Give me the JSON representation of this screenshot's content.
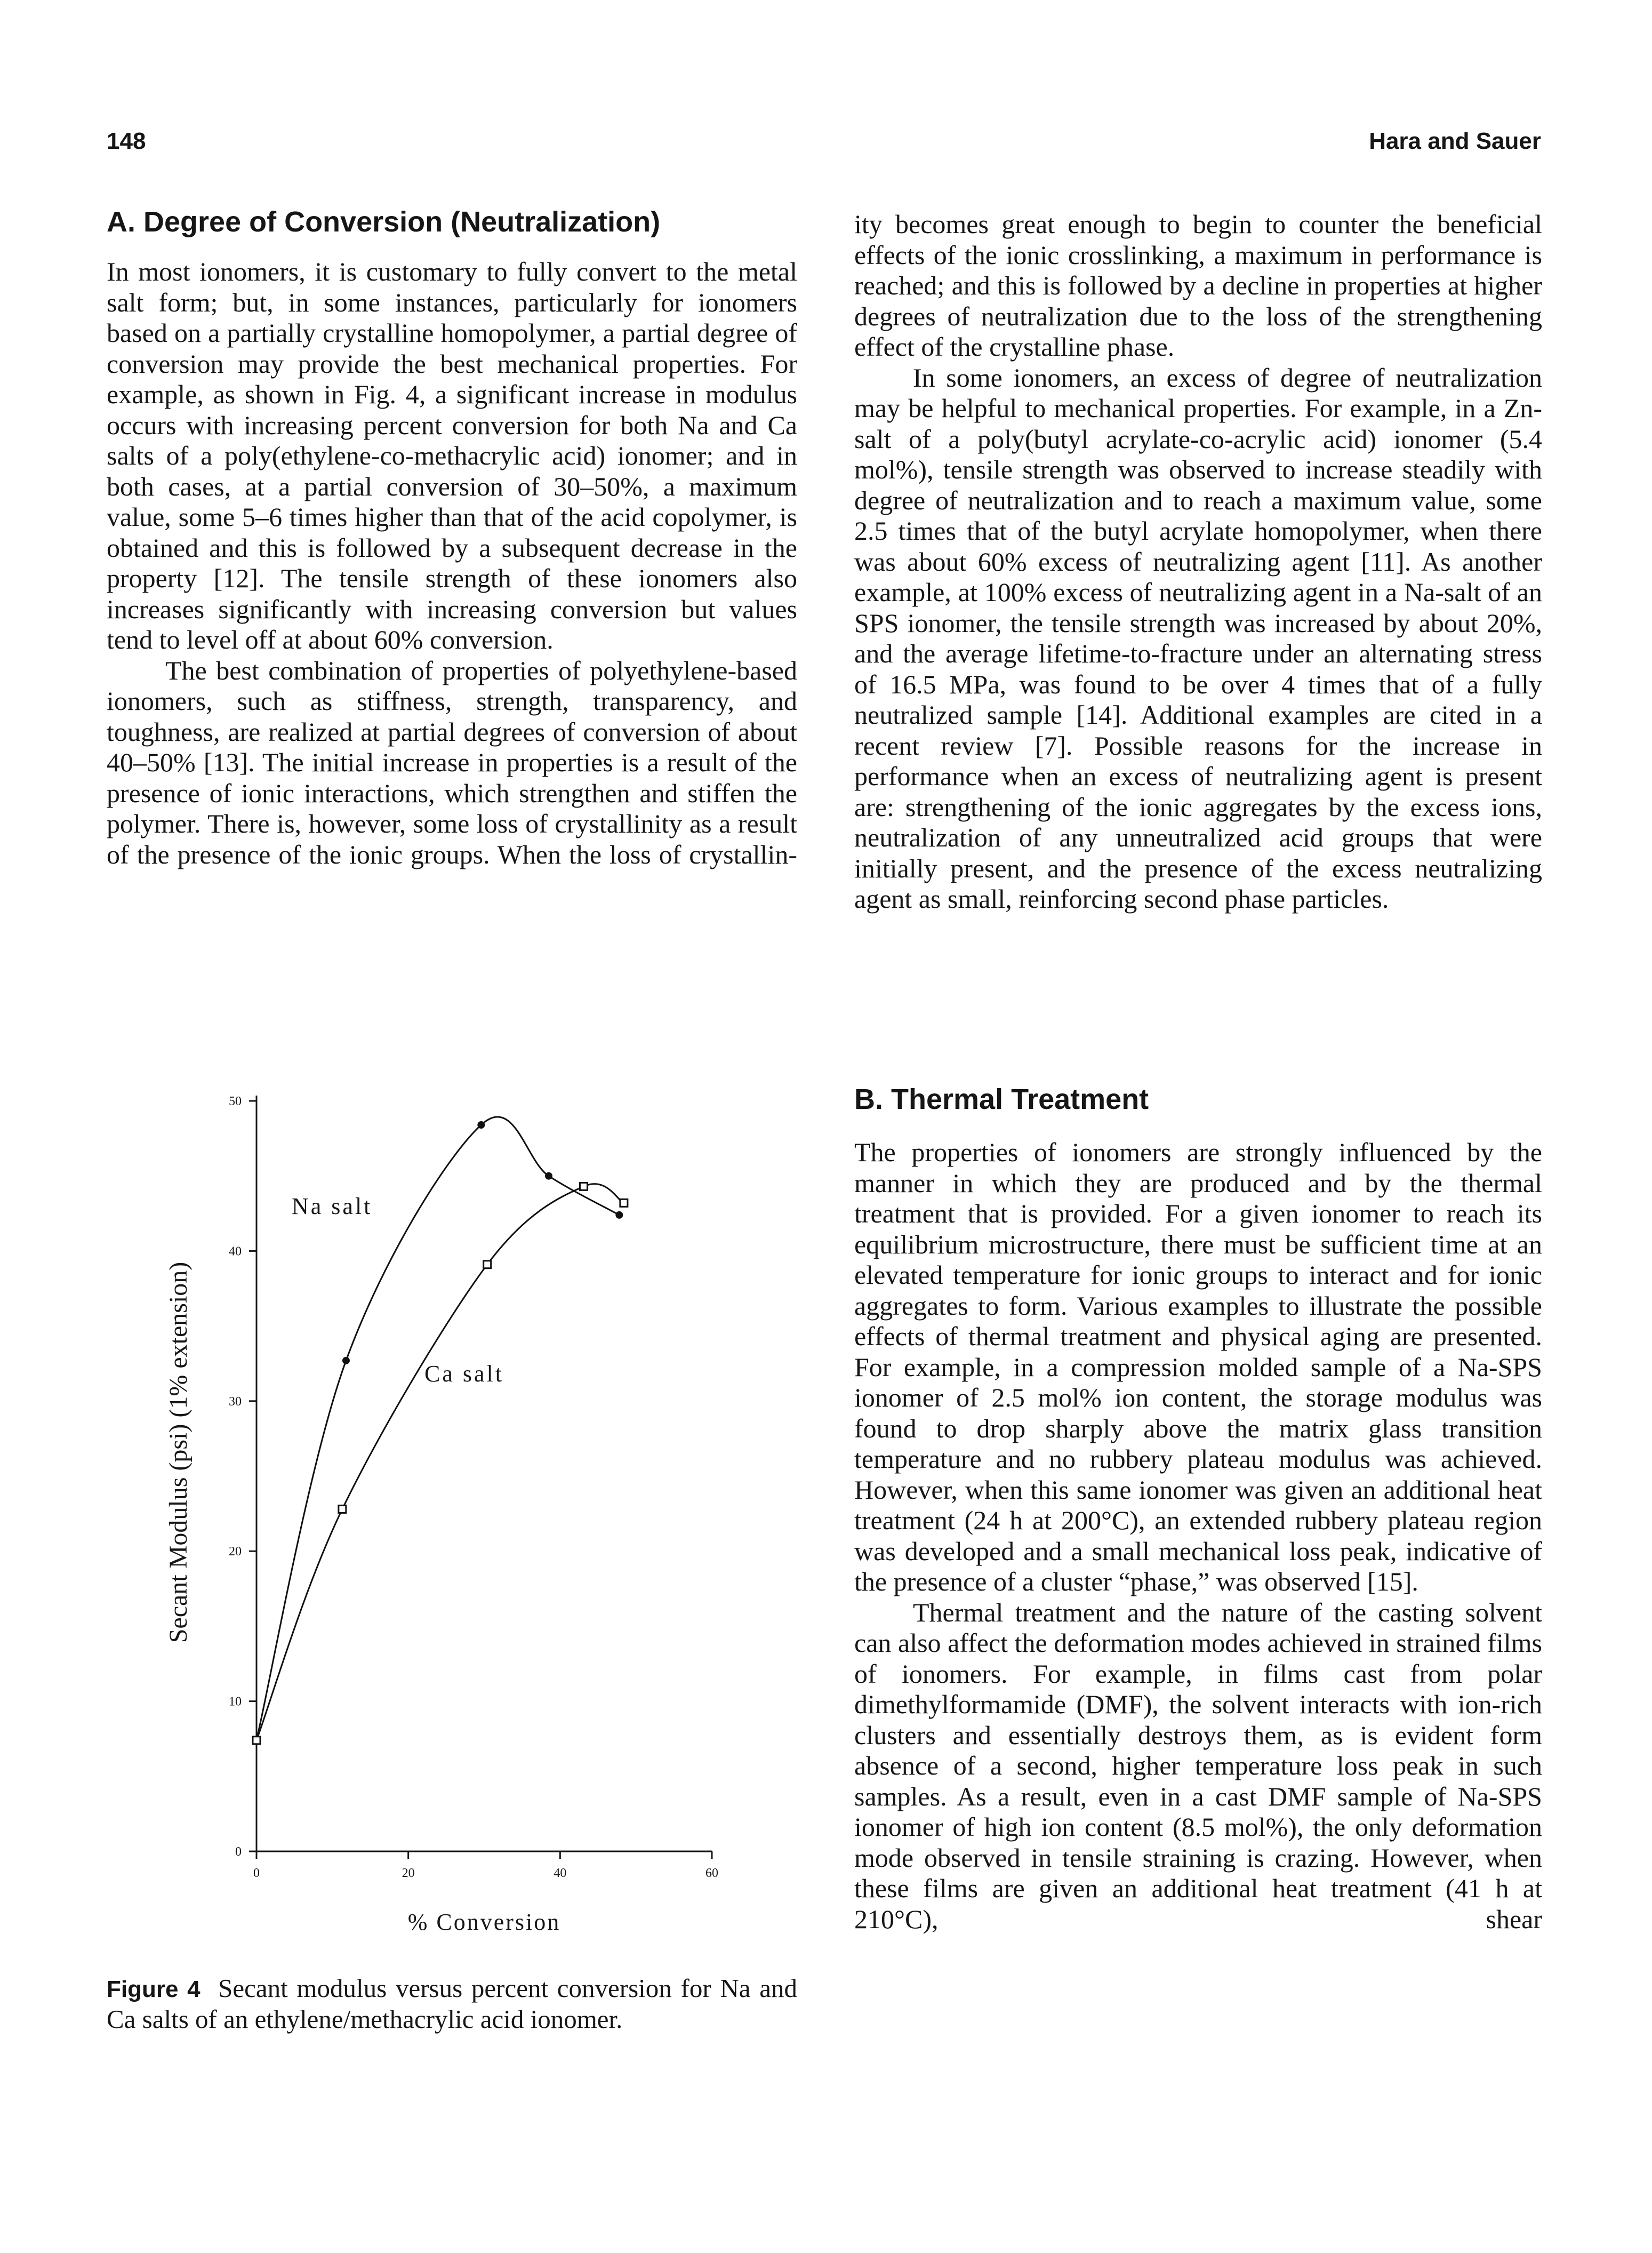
{
  "header": {
    "page_number": "148",
    "running_head": "Hara and Sauer"
  },
  "left_column": {
    "heading": "A. Degree of Conversion (Neutralization)",
    "paragraphs": [
      "In most ionomers, it is customary to fully convert to the metal salt form; but, in some instances, particularly for ionomers based on a partially crystalline homopolymer, a partial degree of conversion may provide the best mechanical properties. For example, as shown in Fig. 4, a significant increase in modulus occurs with increasing percent conversion for both Na and Ca salts of a poly(ethylene-co-methacrylic acid) ionomer; and in both cases, at a partial conversion of 30–50%, a maximum value, some 5–6 times higher than that of the acid copolymer, is obtained and this is followed by a subsequent decrease in the property [12]. The tensile strength of these ionomers also increases significantly with increasing conversion but values tend to level off at about 60% conversion.",
      "The best combination of properties of polyethylene-based ionomers, such as stiffness, strength, transparency, and toughness, are realized at partial degrees of conversion of about 40–50% [13]. The initial increase in properties is a result of the presence of ionic interactions, which strengthen and stiffen the polymer. There is, however, some loss of crystallinity as a result of the presence of the ionic groups. When the loss of crystallin-"
    ]
  },
  "right_column": {
    "paragraphs": [
      "ity becomes great enough to begin to counter the beneficial effects of the ionic crosslinking, a maximum in performance is reached; and this is followed by a decline in properties at higher degrees of neutralization due to the loss of the strengthening effect of the crystalline phase.",
      "In some ionomers, an excess of degree of neutralization may be helpful to mechanical properties. For example, in a Zn-salt of a poly(butyl acrylate-co-acrylic acid) ionomer (5.4 mol%), tensile strength was observed to increase steadily with degree of neutralization and to reach a maximum value, some 2.5 times that of the butyl acrylate homopolymer, when there was about 60% excess of neutralizing agent [11]. As another example, at 100% excess of neutralizing agent in a Na-salt of an SPS ionomer, the tensile strength was increased by about 20%, and the average lifetime-to-fracture under an alternating stress of 16.5 MPa, was found to be over 4 times that of a fully neutralized sample [14]. Additional examples are cited in a recent review [7]. Possible reasons for the increase in performance when an excess of neutralizing agent is present are: strengthening of the ionic aggregates by the excess ions, neutralization of any unneutralized acid groups that were initially present, and the presence of the excess neutralizing agent as small, reinforcing second phase particles."
    ],
    "heading": "B. Thermal Treatment",
    "section_paragraphs": [
      "The properties of ionomers are strongly influenced by the manner in which they are produced and by the thermal treatment that is provided. For a given ionomer to reach its equilibrium microstructure, there must be sufficient time at an elevated temperature for ionic groups to interact and for ionic aggregates to form. Various examples to illustrate the possible effects of thermal treatment and physical aging are presented. For example, in a compression molded sample of a Na-SPS ionomer of 2.5 mol% ion content, the storage modulus was found to drop sharply above the matrix glass transition temperature and no rubbery plateau modulus was achieved. However, when this same ionomer was given an additional heat treatment (24 h at 200°C), an extended rubbery plateau region was developed and a small mechanical loss peak, indicative of the presence of a cluster “phase,” was observed [15].",
      "Thermal treatment and the nature of the casting solvent can also affect the deformation modes achieved in strained films of ionomers. For example, in films cast from polar dimethylformamide (DMF), the solvent interacts with ion-rich clusters and essentially destroys them, as is evident form absence of a second, higher temperature loss peak in such samples. As a result, even in a cast DMF sample of Na-SPS ionomer of high ion content (8.5 mol%), the only deformation mode observed in tensile straining is crazing. However, when these films are given an additional heat treatment (41 h at 210°C), shear"
    ]
  },
  "chart_data": {
    "type": "line",
    "xlabel": "% Conversion",
    "ylabel": "Secant Modulus (psi) (1% extension)",
    "annotations": [
      "Na salt",
      "Ca salt"
    ],
    "xlim": [
      0,
      60
    ],
    "xticks": [
      0,
      20,
      40,
      60
    ],
    "ylim": [
      0,
      50
    ],
    "yticks": [
      0,
      10,
      20,
      30,
      40,
      50
    ],
    "grid": false,
    "series": [
      {
        "name": "Na salt",
        "color": "#111111",
        "marker": "circle",
        "x": [
          0,
          11.8,
          29.6,
          38.5,
          47.8
        ],
        "values": [
          7.4,
          32.7,
          48.4,
          45,
          42.4
        ]
      },
      {
        "name": "Ca salt",
        "color": "#111111",
        "marker": "square",
        "x": [
          0,
          11.3,
          30.4,
          43.1,
          48.4
        ],
        "values": [
          7.4,
          22.8,
          39.1,
          44.3,
          43.2
        ]
      }
    ]
  },
  "figure": {
    "label": "Figure 4",
    "caption": "Secant modulus versus percent conversion for Na and Ca salts of an ethylene/methacrylic acid ionomer."
  }
}
